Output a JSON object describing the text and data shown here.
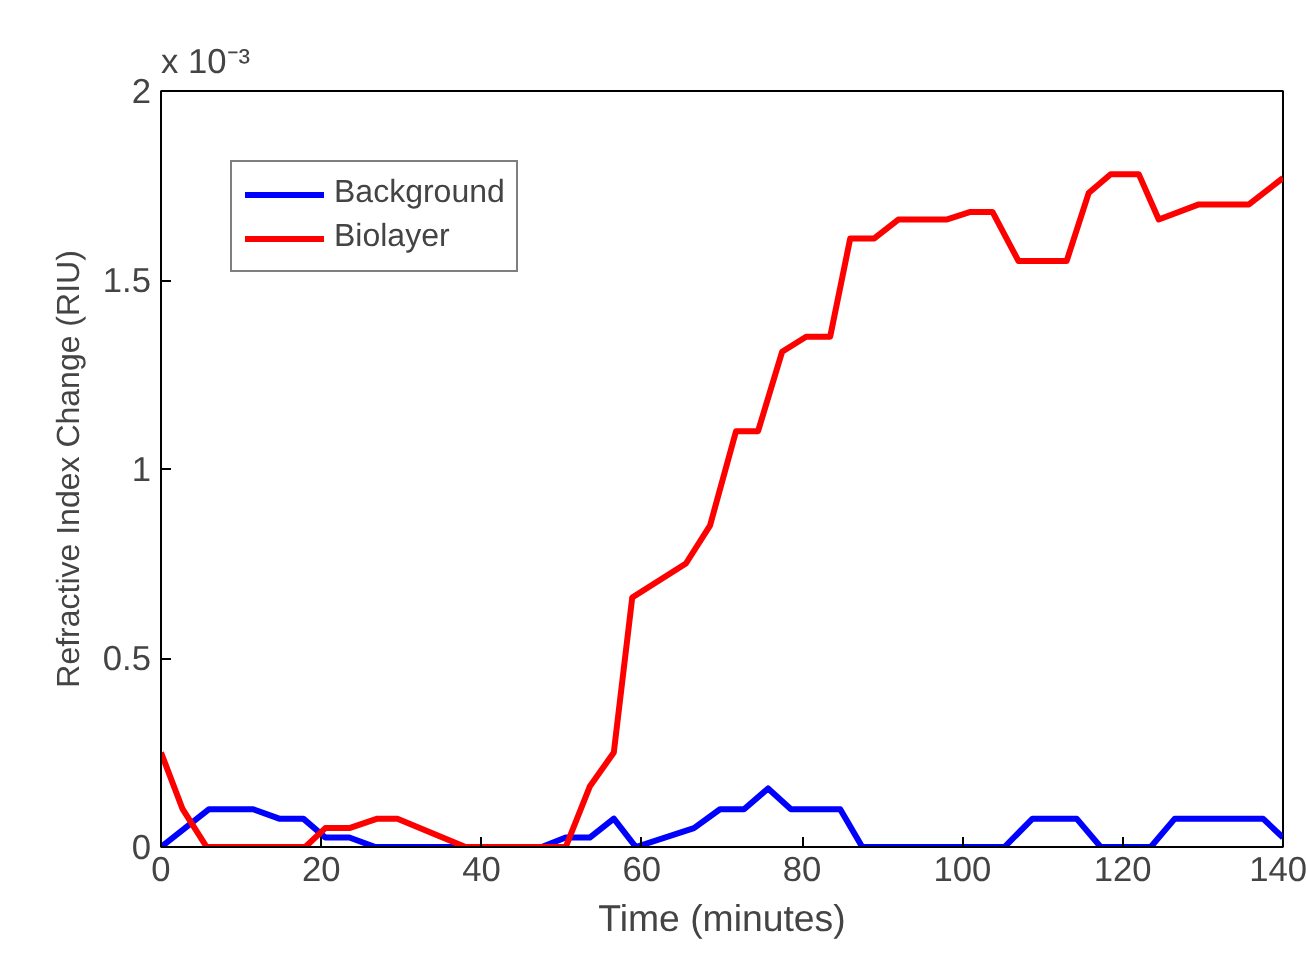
{
  "chart_data": {
    "type": "line",
    "xlabel": "Time (minutes)",
    "ylabel": "Refractive Index Change (RIU)",
    "annotations": [
      "x 10⁻³"
    ],
    "xlim": [
      0,
      140
    ],
    "ylim": [
      0,
      2
    ],
    "xticks": [
      0,
      20,
      40,
      60,
      80,
      100,
      120,
      140
    ],
    "yticks": [
      0,
      0.5,
      1,
      1.5,
      2
    ],
    "grid": false,
    "legend": "top left",
    "line_style": "solid",
    "marker": "none",
    "series": [
      {
        "name": "Background",
        "color": "#0000ff",
        "x": [
          0,
          6,
          11.5,
          14.75,
          17.75,
          20.5,
          23.5,
          26.75,
          47.5,
          50.5,
          53.5,
          56.5,
          59.25,
          66.5,
          69.75,
          72.75,
          75.75,
          78.6,
          84.75,
          87.5,
          105.25,
          108.75,
          114.25,
          117.25,
          123.5,
          126.5,
          137.5,
          140
        ],
        "values": [
          0,
          0.1,
          0.1,
          0.075,
          0.075,
          0.025,
          0.025,
          0,
          0,
          0.025,
          0.025,
          0.075,
          0,
          0.05,
          0.1,
          0.1,
          0.155,
          0.1,
          0.1,
          0,
          0,
          0.075,
          0.075,
          0,
          0,
          0.075,
          0.075,
          0.025
        ]
      },
      {
        "name": "Biolayer",
        "color": "#ff0000",
        "x": [
          0,
          2.7,
          5.7,
          18,
          20.5,
          23.5,
          27,
          29.5,
          38,
          50.5,
          53.5,
          56.5,
          58.8,
          65.5,
          68.5,
          71.75,
          74.5,
          77.5,
          80.5,
          83.5,
          86,
          89,
          92,
          98,
          101,
          103.75,
          107,
          113,
          115.75,
          118.5,
          122,
          124.5,
          129.5,
          135.75,
          140
        ],
        "values": [
          0.25,
          0.1,
          0,
          0,
          0.05,
          0.05,
          0.075,
          0.075,
          0,
          0,
          0.16,
          0.25,
          0.66,
          0.75,
          0.85,
          1.1,
          1.1,
          1.31,
          1.35,
          1.35,
          1.61,
          1.61,
          1.66,
          1.66,
          1.68,
          1.68,
          1.55,
          1.55,
          1.73,
          1.78,
          1.78,
          1.66,
          1.7,
          1.7,
          1.77
        ]
      }
    ]
  }
}
